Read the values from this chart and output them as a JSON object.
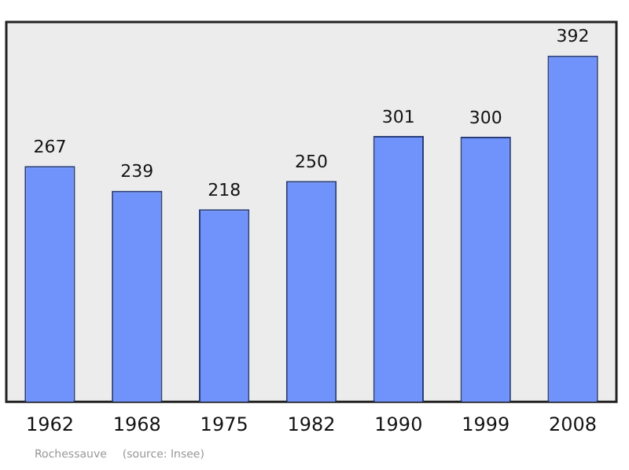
{
  "chart_data": {
    "type": "bar",
    "categories": [
      "1962",
      "1968",
      "1975",
      "1982",
      "1990",
      "1999",
      "2008"
    ],
    "values": [
      267,
      239,
      218,
      250,
      301,
      300,
      392
    ],
    "color": "#7093fb",
    "ylim": [
      0,
      430
    ],
    "tick_labels": "x",
    "grid": false,
    "legend": false,
    "data_labels": true,
    "annotations": [
      "Rochessauve",
      "(source: Insee)"
    ]
  }
}
